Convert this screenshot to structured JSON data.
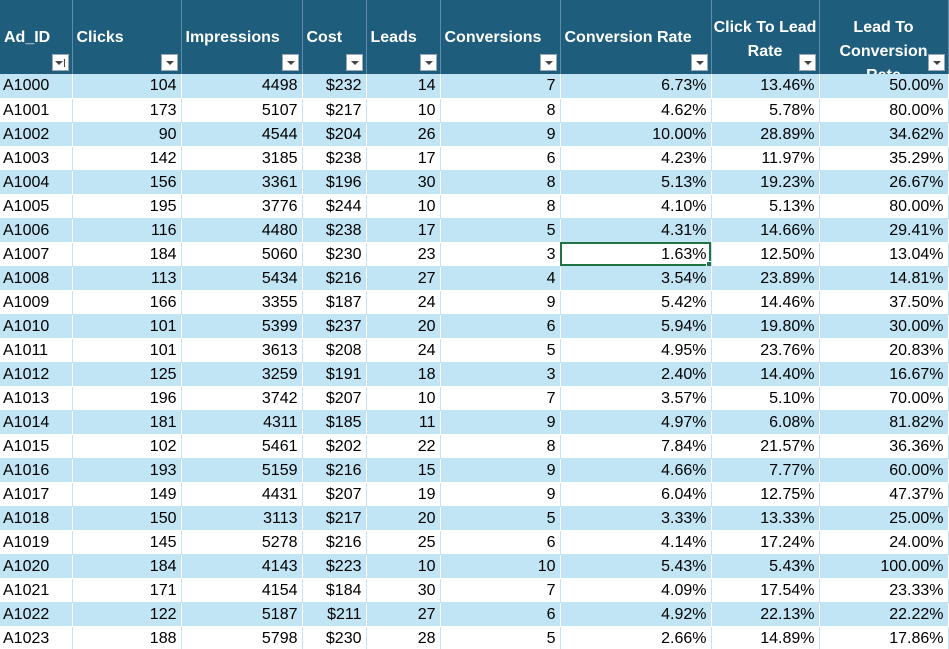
{
  "headers": [
    {
      "label": "Ad_ID",
      "two_line": false,
      "sorted": true
    },
    {
      "label": "Clicks",
      "two_line": false,
      "sorted": false
    },
    {
      "label": "Impressions",
      "two_line": false,
      "sorted": false
    },
    {
      "label": "Cost",
      "two_line": false,
      "sorted": false
    },
    {
      "label": "Leads",
      "two_line": false,
      "sorted": false
    },
    {
      "label": "Conversions",
      "two_line": false,
      "sorted": false
    },
    {
      "label": "Conversion Rate",
      "two_line": false,
      "sorted": false
    },
    {
      "label": "Click To Lead Rate",
      "two_line": true,
      "sorted": false
    },
    {
      "label": "Lead To Conversion Rate",
      "two_line": true,
      "sorted": false
    }
  ],
  "selected_cell": {
    "row": 7,
    "col": 6
  },
  "rows": [
    [
      "A1000",
      "104",
      "4498",
      "$232",
      "14",
      "7",
      "6.73%",
      "13.46%",
      "50.00%"
    ],
    [
      "A1001",
      "173",
      "5107",
      "$217",
      "10",
      "8",
      "4.62%",
      "5.78%",
      "80.00%"
    ],
    [
      "A1002",
      "90",
      "4544",
      "$204",
      "26",
      "9",
      "10.00%",
      "28.89%",
      "34.62%"
    ],
    [
      "A1003",
      "142",
      "3185",
      "$238",
      "17",
      "6",
      "4.23%",
      "11.97%",
      "35.29%"
    ],
    [
      "A1004",
      "156",
      "3361",
      "$196",
      "30",
      "8",
      "5.13%",
      "19.23%",
      "26.67%"
    ],
    [
      "A1005",
      "195",
      "3776",
      "$244",
      "10",
      "8",
      "4.10%",
      "5.13%",
      "80.00%"
    ],
    [
      "A1006",
      "116",
      "4480",
      "$238",
      "17",
      "5",
      "4.31%",
      "14.66%",
      "29.41%"
    ],
    [
      "A1007",
      "184",
      "5060",
      "$230",
      "23",
      "3",
      "1.63%",
      "12.50%",
      "13.04%"
    ],
    [
      "A1008",
      "113",
      "5434",
      "$216",
      "27",
      "4",
      "3.54%",
      "23.89%",
      "14.81%"
    ],
    [
      "A1009",
      "166",
      "3355",
      "$187",
      "24",
      "9",
      "5.42%",
      "14.46%",
      "37.50%"
    ],
    [
      "A1010",
      "101",
      "5399",
      "$237",
      "20",
      "6",
      "5.94%",
      "19.80%",
      "30.00%"
    ],
    [
      "A1011",
      "101",
      "3613",
      "$208",
      "24",
      "5",
      "4.95%",
      "23.76%",
      "20.83%"
    ],
    [
      "A1012",
      "125",
      "3259",
      "$191",
      "18",
      "3",
      "2.40%",
      "14.40%",
      "16.67%"
    ],
    [
      "A1013",
      "196",
      "3742",
      "$207",
      "10",
      "7",
      "3.57%",
      "5.10%",
      "70.00%"
    ],
    [
      "A1014",
      "181",
      "4311",
      "$185",
      "11",
      "9",
      "4.97%",
      "6.08%",
      "81.82%"
    ],
    [
      "A1015",
      "102",
      "5461",
      "$202",
      "22",
      "8",
      "7.84%",
      "21.57%",
      "36.36%"
    ],
    [
      "A1016",
      "193",
      "5159",
      "$216",
      "15",
      "9",
      "4.66%",
      "7.77%",
      "60.00%"
    ],
    [
      "A1017",
      "149",
      "4431",
      "$207",
      "19",
      "9",
      "6.04%",
      "12.75%",
      "47.37%"
    ],
    [
      "A1018",
      "150",
      "3113",
      "$217",
      "20",
      "5",
      "3.33%",
      "13.33%",
      "25.00%"
    ],
    [
      "A1019",
      "145",
      "5278",
      "$216",
      "25",
      "6",
      "4.14%",
      "17.24%",
      "24.00%"
    ],
    [
      "A1020",
      "184",
      "4143",
      "$223",
      "10",
      "10",
      "5.43%",
      "5.43%",
      "100.00%"
    ],
    [
      "A1021",
      "171",
      "4154",
      "$184",
      "30",
      "7",
      "4.09%",
      "17.54%",
      "23.33%"
    ],
    [
      "A1022",
      "122",
      "5187",
      "$211",
      "27",
      "6",
      "4.92%",
      "22.13%",
      "22.22%"
    ],
    [
      "A1023",
      "188",
      "5798",
      "$230",
      "28",
      "5",
      "2.66%",
      "14.89%",
      "17.86%"
    ]
  ]
}
